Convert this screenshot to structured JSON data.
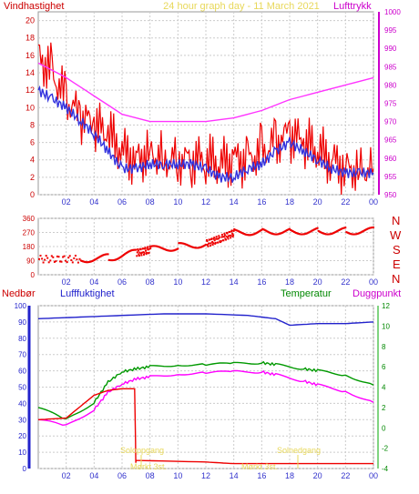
{
  "chart_data": [
    {
      "type": "line",
      "title": "24 hour graph day - 11 March 2021",
      "left_label": "Vindhastighet",
      "right_label": "Lufttrykk",
      "x_ticks": [
        "02",
        "04",
        "06",
        "08",
        "10",
        "12",
        "14",
        "16",
        "18",
        "20",
        "22",
        "00"
      ],
      "y_left": {
        "range": [
          0,
          21
        ],
        "ticks": [
          "0",
          "2",
          "4",
          "6",
          "8",
          "10",
          "12",
          "14",
          "16",
          "18",
          "20"
        ]
      },
      "y_right": {
        "range": [
          950,
          1000
        ],
        "ticks": [
          "950",
          "955",
          "960",
          "965",
          "970",
          "975",
          "980",
          "985",
          "990",
          "995",
          "1000"
        ]
      },
      "series": [
        {
          "color": "#ee0000",
          "x": [
            0,
            1,
            2,
            3,
            4,
            5,
            6,
            7,
            8,
            9,
            10,
            11,
            12,
            13,
            14,
            15,
            16,
            17,
            18,
            19,
            20,
            21,
            22,
            23,
            24
          ],
          "values": [
            16,
            14,
            11,
            9,
            8,
            7,
            5,
            4,
            5,
            4,
            4,
            4,
            4,
            3.5,
            4,
            4,
            5,
            6,
            7,
            6,
            5,
            4,
            3,
            3,
            3
          ]
        },
        {
          "color": "#3333dd",
          "x": [
            0,
            1,
            2,
            3,
            4,
            5,
            6,
            7,
            8,
            9,
            10,
            11,
            12,
            13,
            14,
            15,
            16,
            17,
            18,
            19,
            20,
            21,
            22,
            23,
            24
          ],
          "values": [
            12,
            11,
            10,
            8.5,
            7,
            5,
            3,
            3,
            3.5,
            3.5,
            3.5,
            3.5,
            3,
            2,
            2,
            3,
            3.5,
            5,
            6,
            5,
            4,
            3,
            2.5,
            2.5,
            2.5
          ]
        },
        {
          "color": "#ff33ff",
          "x": [
            0,
            2,
            4,
            6,
            8,
            10,
            12,
            14,
            16,
            18,
            20,
            22,
            24
          ],
          "values": [
            986,
            982,
            977,
            972,
            970,
            970,
            970,
            971,
            973,
            976,
            978,
            980,
            982
          ]
        }
      ]
    },
    {
      "type": "scatter",
      "right_label_letters": [
        "N",
        "W",
        "S",
        "E",
        "N"
      ],
      "y": {
        "range": [
          0,
          360
        ],
        "ticks": [
          "0",
          "90",
          "180",
          "270",
          "360"
        ]
      },
      "x_ticks": [
        "02",
        "04",
        "06",
        "08",
        "10",
        "12",
        "14",
        "16",
        "18",
        "20",
        "22",
        "00"
      ],
      "series": [
        {
          "color": "#ee0000",
          "x": [
            0,
            3,
            5,
            7,
            8,
            10,
            12,
            13,
            14,
            16,
            18,
            20,
            22,
            24
          ],
          "values": [
            100,
            100,
            110,
            140,
            160,
            180,
            200,
            230,
            270,
            280,
            280,
            280,
            280,
            280
          ]
        }
      ]
    },
    {
      "type": "line",
      "left_labels": {
        "nedbor": "Nedbør",
        "luftfuktighet": "Lufffuktighet"
      },
      "right_labels": {
        "temperatur": "Temperatur",
        "duggpunkt": "Duggpunkt"
      },
      "y_left": {
        "range": [
          0,
          100
        ],
        "ticks": [
          "0",
          "10",
          "20",
          "30",
          "40",
          "50",
          "60",
          "70",
          "80",
          "90",
          "100"
        ]
      },
      "y_right": {
        "range": [
          -4,
          12
        ],
        "ticks": [
          "-4",
          "-2",
          "0",
          "2",
          "4",
          "6",
          "8",
          "10",
          "12"
        ]
      },
      "x_ticks": [
        "02",
        "04",
        "06",
        "08",
        "10",
        "12",
        "14",
        "16",
        "18",
        "20",
        "22",
        "00"
      ],
      "annotations": [
        "Soloppgang",
        "Mørkt 3st.",
        "Solnedgang",
        "Mørkt 3st."
      ],
      "series": [
        {
          "color": "#2222cc",
          "x": [
            0,
            3,
            6,
            9,
            12,
            15,
            17,
            18,
            20,
            22,
            24
          ],
          "values": [
            92,
            93,
            94,
            95,
            95,
            94,
            92,
            88,
            89,
            89,
            90
          ]
        },
        {
          "color": "#009900",
          "x": [
            0,
            2,
            4,
            5,
            6,
            7,
            8,
            10,
            12,
            14,
            16,
            17,
            19,
            20,
            22,
            24
          ],
          "values": [
            2,
            0.8,
            2.5,
            4.5,
            5.5,
            5.8,
            6,
            6.2,
            6.2,
            6.3,
            6.4,
            6.2,
            5.8,
            5.6,
            5.2,
            4.2
          ]
        },
        {
          "color": "#ff00ff",
          "x": [
            0,
            2,
            4,
            5,
            6,
            7,
            8,
            10,
            12,
            14,
            16,
            17,
            19,
            20,
            22,
            24
          ],
          "values": [
            0.8,
            0.2,
            1.8,
            3.5,
            4.3,
            4.8,
            5,
            5.3,
            5.4,
            5.5,
            5.5,
            5.2,
            4.6,
            4.2,
            3.6,
            2.5
          ]
        },
        {
          "color": "#ee0000",
          "x": [
            0,
            2,
            4,
            5,
            6,
            6.9,
            7,
            12,
            14,
            16,
            18,
            20,
            24
          ],
          "values": [
            30,
            31,
            45,
            48,
            49,
            49,
            -3,
            -2,
            -1,
            -1,
            -1,
            -1,
            -1
          ]
        }
      ]
    }
  ]
}
